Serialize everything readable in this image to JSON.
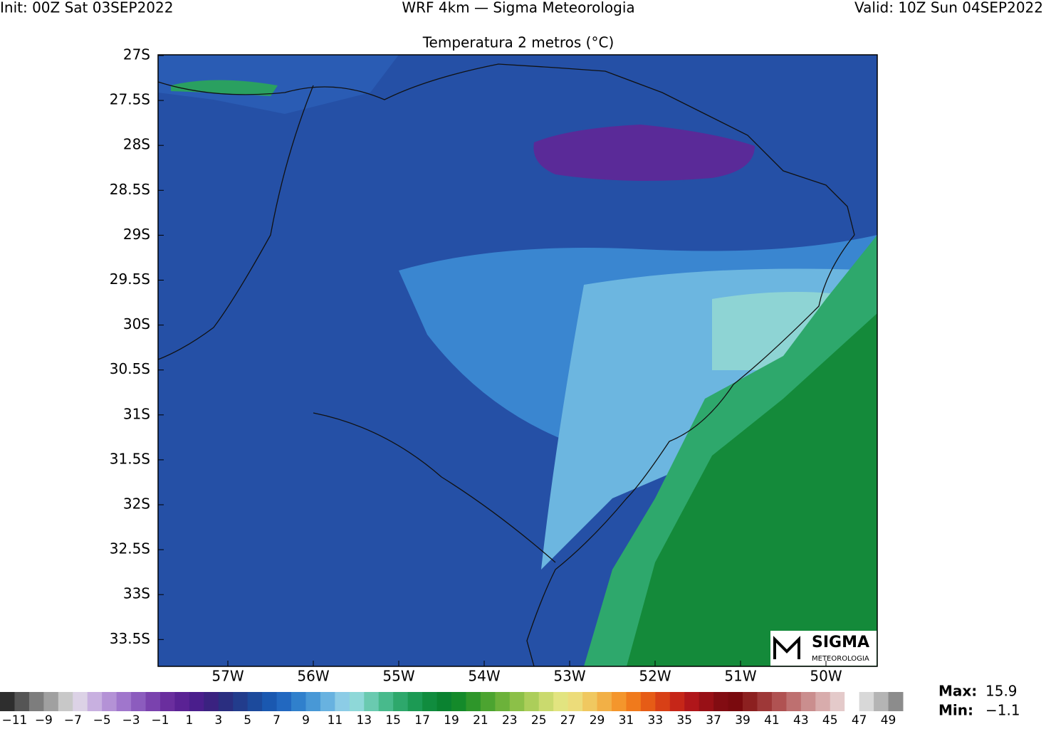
{
  "header": {
    "init": "Init: 00Z Sat 03SEP2022",
    "model": "WRF 4km — Sigma Meteorologia",
    "valid": "Valid: 10Z Sun 04SEP2022"
  },
  "map": {
    "title": "Temperatura 2 metros (°C)",
    "lat_labels": [
      "27S",
      "27.5S",
      "28S",
      "28.5S",
      "29S",
      "29.5S",
      "30S",
      "30.5S",
      "31S",
      "31.5S",
      "32S",
      "32.5S",
      "33S",
      "33.5S"
    ],
    "lon_labels": [
      "57W",
      "56W",
      "55W",
      "54W",
      "53W",
      "52W",
      "51W",
      "50W"
    ]
  },
  "colorbar": {
    "labels": [
      "−11",
      "−9",
      "−7",
      "−5",
      "−3",
      "−1",
      "1",
      "3",
      "5",
      "7",
      "9",
      "11",
      "13",
      "15",
      "17",
      "19",
      "21",
      "23",
      "25",
      "27",
      "29",
      "31",
      "33",
      "35",
      "37",
      "39",
      "41",
      "43",
      "45",
      "47",
      "49"
    ],
    "colors": [
      "#2e2e2e",
      "#555555",
      "#7d7d7d",
      "#a0a0a0",
      "#c8c8c8",
      "#dcd2e6",
      "#c8b0e0",
      "#b492d6",
      "#a076cc",
      "#8c5cbe",
      "#7a42ae",
      "#6a2e9e",
      "#5a2294",
      "#4a1e8c",
      "#3a2280",
      "#2a2e80",
      "#223c8c",
      "#1c4a9c",
      "#1a58b0",
      "#2268c0",
      "#3080cc",
      "#4898d6",
      "#68b2e0",
      "#8ccce6",
      "#8ed8d8",
      "#6acab0",
      "#48ba8c",
      "#2ea86c",
      "#1c9a54",
      "#108c3e",
      "#0a8230",
      "#148a2a",
      "#2e962a",
      "#4ca430",
      "#6cb23a",
      "#8cc048",
      "#acce5a",
      "#cada6e",
      "#e2e480",
      "#ecdc7a",
      "#f0c860",
      "#f2b046",
      "#f4962c",
      "#f07a1c",
      "#e65c16",
      "#d84016",
      "#c62618",
      "#b0161a",
      "#981016",
      "#820c12",
      "#7a0a0e",
      "#8c2020",
      "#9e3838",
      "#b05252",
      "#be7070",
      "#ca8e8e",
      "#d8acac",
      "#e4caca",
      "#ffffff",
      "#d8d8d8",
      "#b4b4b4",
      "#8c8c8c"
    ]
  },
  "stats": {
    "max_label": "Max:",
    "max": "15.9",
    "min_label": "Min:",
    "min": "−1.1"
  },
  "logo": {
    "name": "SIGMA",
    "sub": "METEOROLOGIA"
  }
}
